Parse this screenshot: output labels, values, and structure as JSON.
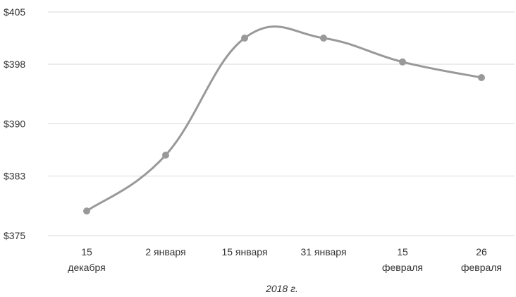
{
  "chart_data": {
    "type": "line",
    "categories": [
      [
        "15",
        "декабря"
      ],
      [
        "2 января"
      ],
      [
        "15 января"
      ],
      [
        "31 января"
      ],
      [
        "15",
        "февраля"
      ],
      [
        "26",
        "февраля"
      ]
    ],
    "series": [
      {
        "values": [
          378.3,
          385.8,
          401.5,
          401.5,
          398.3,
          396.2
        ]
      }
    ],
    "y_ticks": [
      375,
      383,
      390,
      398,
      405
    ],
    "y_tick_labels": [
      "$375",
      "$383",
      "$390",
      "$398",
      "$405"
    ],
    "ylim": [
      375,
      405
    ],
    "xlabel": "2018 г.",
    "grid": true,
    "series_color": "#999999",
    "smooth": true
  }
}
